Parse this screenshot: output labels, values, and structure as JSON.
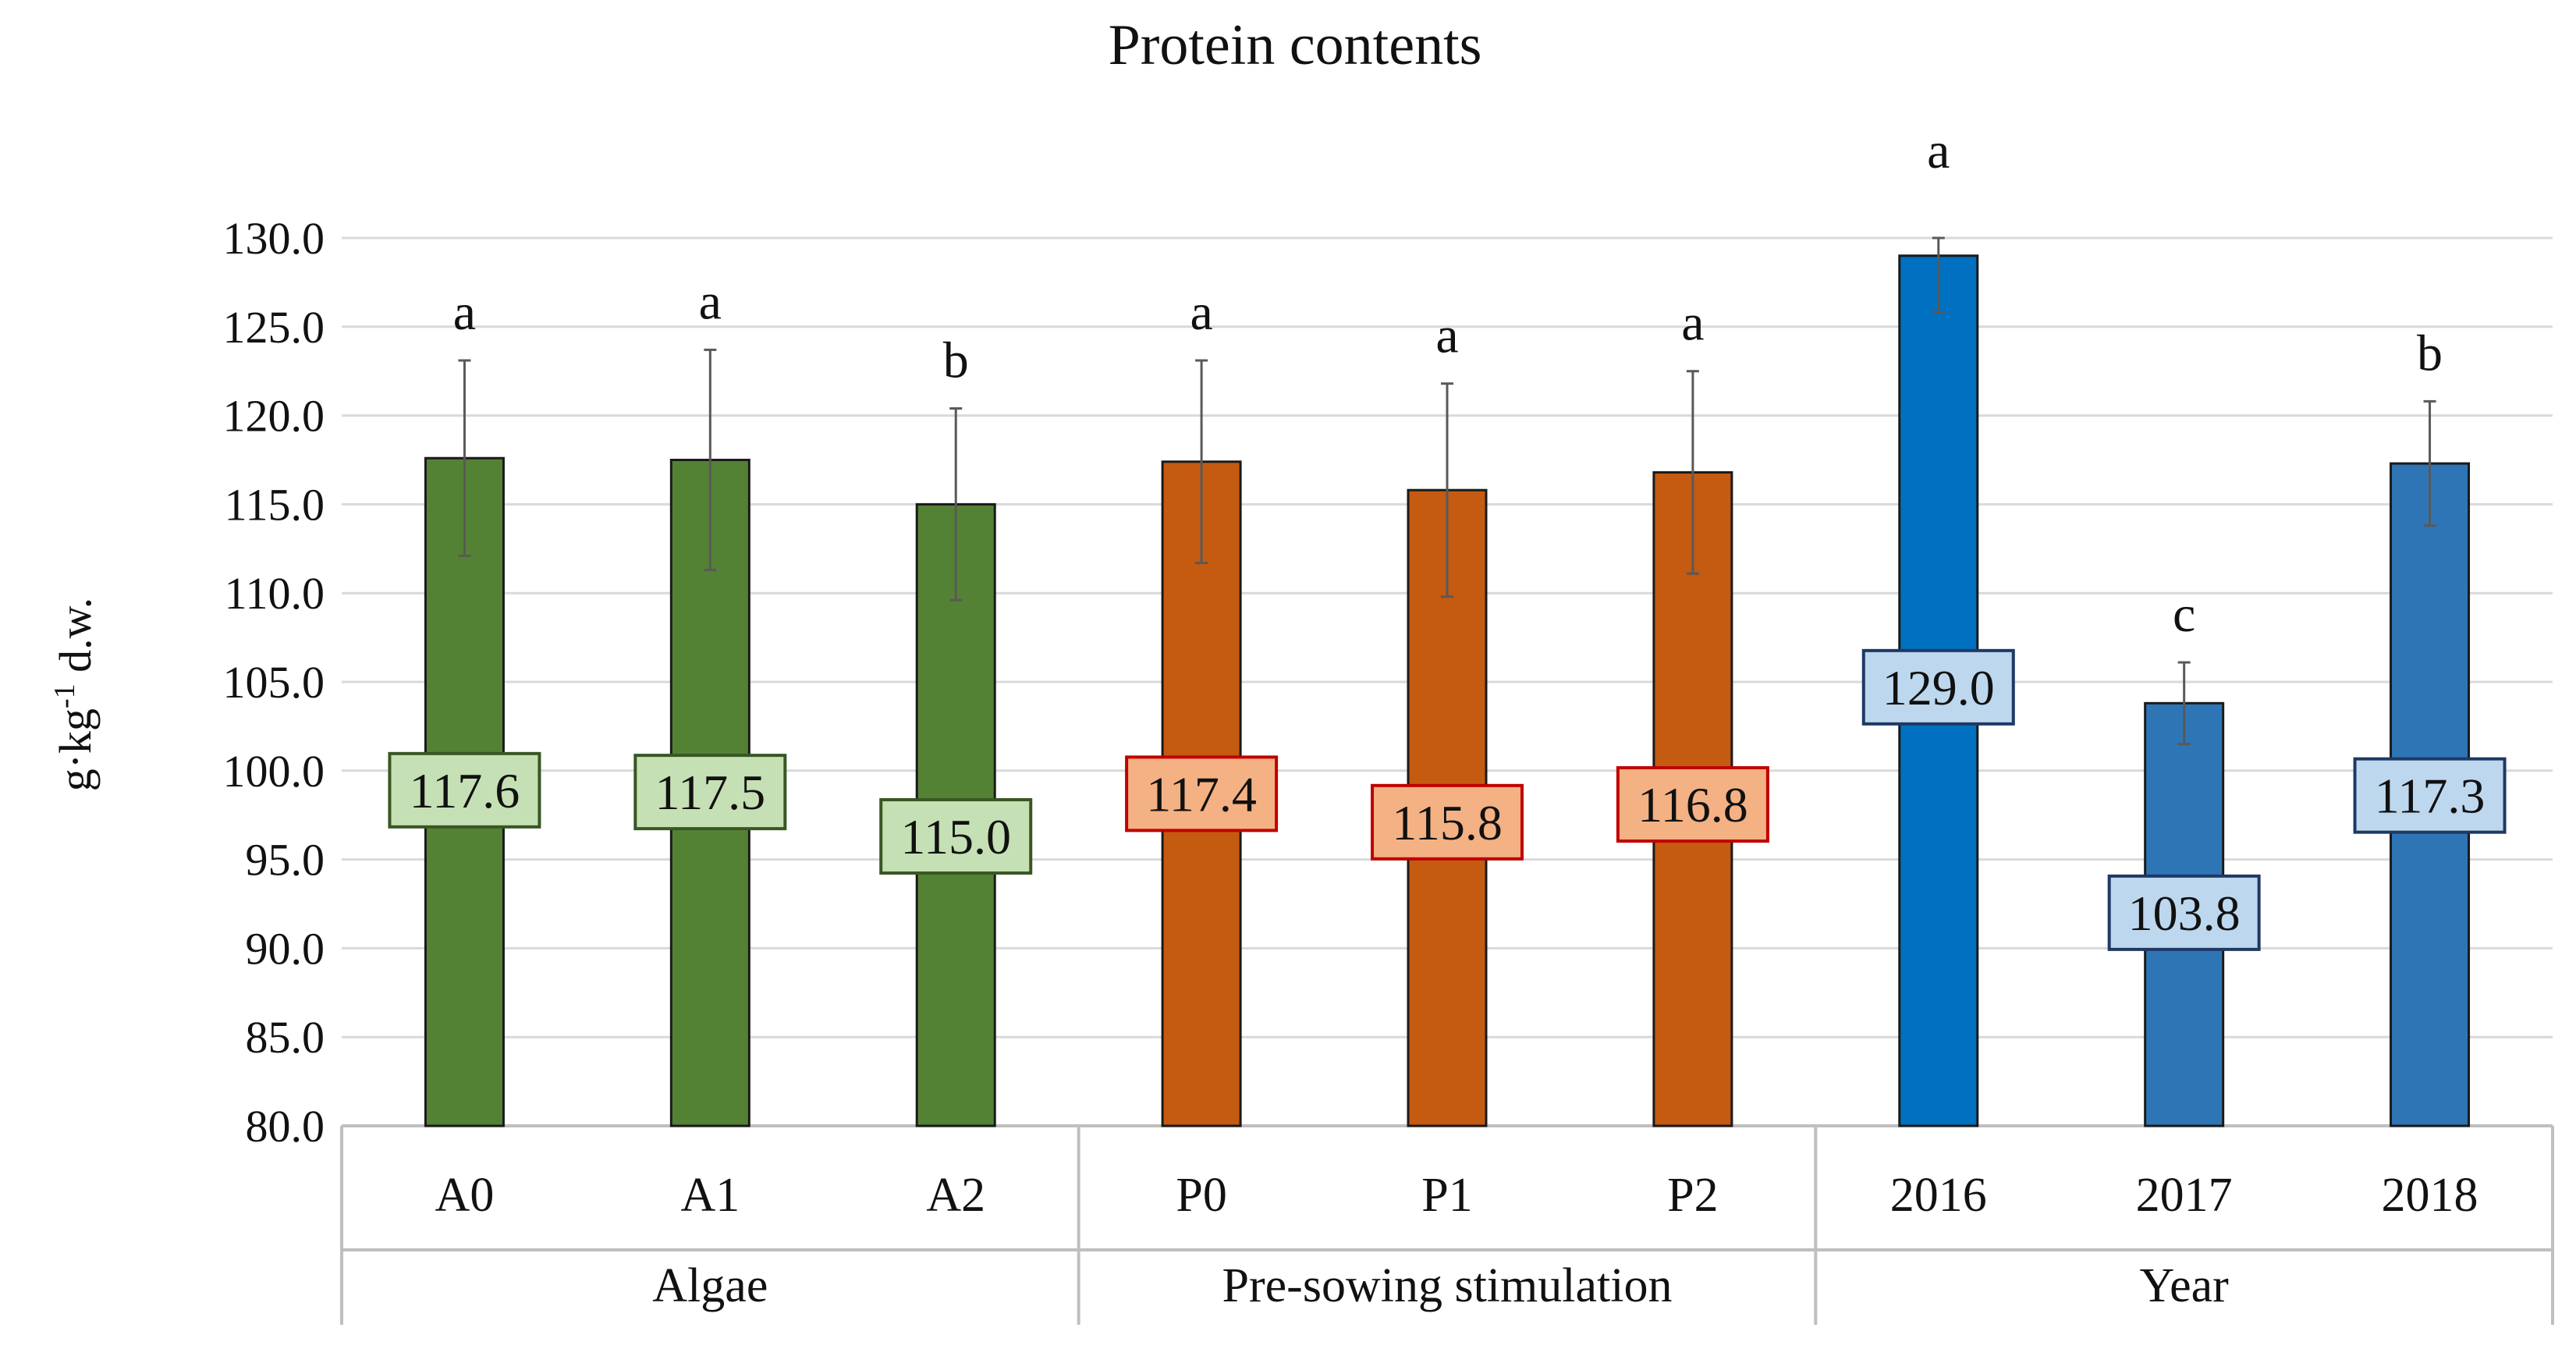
{
  "chart_data": {
    "type": "bar",
    "title": "Protein contents",
    "ylabel": "g·kg⁻¹ d.w.",
    "xlabel": "",
    "ylim": [
      80.0,
      130.0
    ],
    "ytick_step": 5.0,
    "yticks": [
      "80.0",
      "85.0",
      "90.0",
      "95.0",
      "100.0",
      "105.0",
      "110.0",
      "115.0",
      "120.0",
      "125.0",
      "130.0"
    ],
    "grid": true,
    "legend": "none",
    "groups": [
      {
        "name": "Algae",
        "bar_color": "#548235",
        "label_bg": "#C5E0B4",
        "label_border": "#385723",
        "bars": [
          {
            "category": "A0",
            "value": 117.6,
            "label": "117.6",
            "error": 5.5,
            "letter": "a"
          },
          {
            "category": "A1",
            "value": 117.5,
            "label": "117.5",
            "error": 6.2,
            "letter": "a"
          },
          {
            "category": "A2",
            "value": 115.0,
            "label": "115.0",
            "error": 5.4,
            "letter": "b"
          }
        ]
      },
      {
        "name": "Pre-sowing stimulation",
        "bar_color": "#C55A11",
        "label_bg": "#F4B183",
        "label_border": "#C00000",
        "bars": [
          {
            "category": "P0",
            "value": 117.4,
            "label": "117.4",
            "error": 5.7,
            "letter": "a"
          },
          {
            "category": "P1",
            "value": 115.8,
            "label": "115.8",
            "error": 6.0,
            "letter": "a"
          },
          {
            "category": "P2",
            "value": 116.8,
            "label": "116.8",
            "error": 5.7,
            "letter": "a"
          }
        ]
      },
      {
        "name": "Year",
        "bar_color": "#2E75B6",
        "label_bg": "#BDD7EE",
        "label_border": "#1F3864",
        "bars": [
          {
            "category": "2016",
            "value": 129.0,
            "label": "129.0",
            "error": 3.2,
            "letter": "a",
            "color": "#0070C0"
          },
          {
            "category": "2017",
            "value": 103.8,
            "label": "103.8",
            "error": 2.3,
            "letter": "c"
          },
          {
            "category": "2018",
            "value": 117.3,
            "label": "117.3",
            "error": 3.5,
            "letter": "b"
          }
        ]
      }
    ]
  }
}
